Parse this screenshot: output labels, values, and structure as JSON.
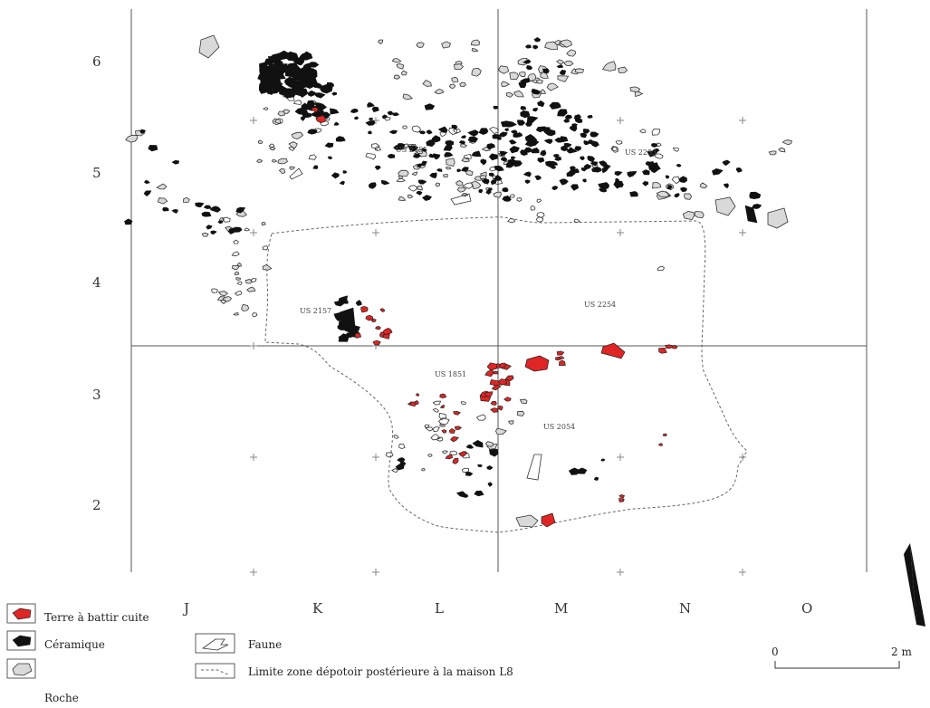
{
  "plan": {
    "column_labels": [
      "J",
      "K",
      "L",
      "M",
      "N",
      "O"
    ],
    "row_labels": [
      "6",
      "5",
      "4",
      "3",
      "2"
    ],
    "us_labels": [
      "US 2155",
      "US 2253",
      "US 2157",
      "US 2254",
      "US 1851",
      "US 2054"
    ]
  },
  "legend": {
    "items": [
      {
        "label": "Terre à battir cuite",
        "category": "terre-cuite",
        "color": "#e02525"
      },
      {
        "label": "Céramique",
        "category": "ceramique",
        "color": "#111111"
      },
      {
        "label": "Roche",
        "category": "roche",
        "color": "#d9d9d9"
      },
      {
        "label": "Faune",
        "category": "faune",
        "color": "#ffffff"
      },
      {
        "label": "Limite zone dépotoir postérieure à la maison L8",
        "category": "limite",
        "color": "#666666"
      }
    ]
  },
  "scale": {
    "start": "0",
    "end": "2 m"
  },
  "icons": {
    "north": "north-arrow-icon"
  }
}
